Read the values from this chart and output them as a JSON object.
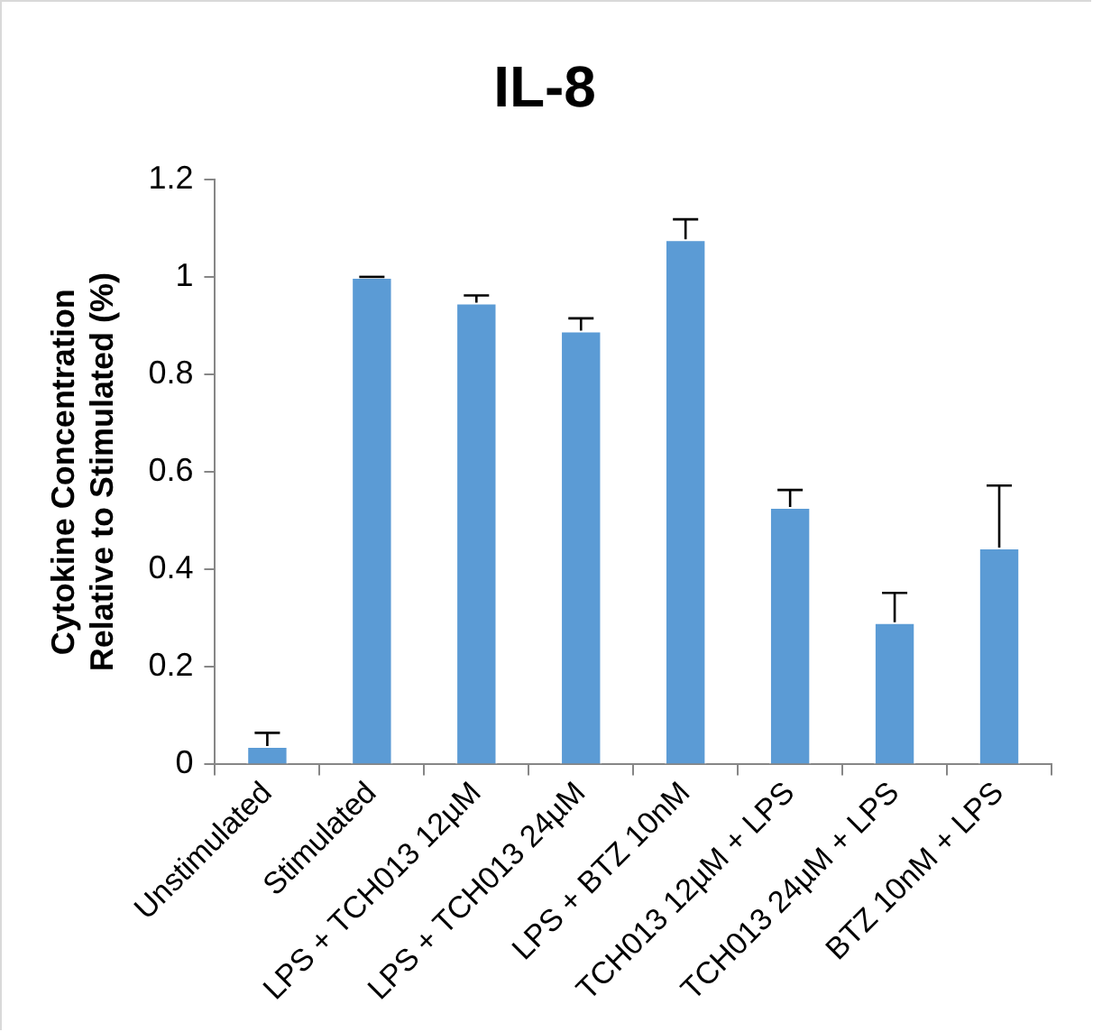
{
  "chart_data": {
    "type": "bar",
    "title": "IL-8",
    "ylabel": "Cytokine Concentration Relative to Stimulated (%)",
    "categories": [
      "Unstimulated",
      "Stimulated",
      "LPS + TCH013 12µM",
      "LPS + TCH013 24µM",
      "LPS + BTZ 10nM",
      "TCH013 12µM + LPS",
      "TCH013 24µM + LPS",
      "BTZ 10nM + LPS"
    ],
    "values": [
      0.038,
      1.0,
      0.947,
      0.89,
      1.077,
      0.528,
      0.292,
      0.445
    ],
    "errors": [
      [
        0.038,
        0.065
      ],
      [
        1.0,
        1.0
      ],
      [
        0.947,
        0.962
      ],
      [
        0.89,
        0.915
      ],
      [
        1.077,
        1.118
      ],
      [
        0.528,
        0.563
      ],
      [
        0.292,
        0.352
      ],
      [
        0.445,
        0.572
      ]
    ],
    "color": "#5b9bd5",
    "ylim": [
      0,
      1.2
    ],
    "yticks": [
      0,
      0.2,
      0.4,
      0.6,
      0.8,
      1,
      1.2
    ],
    "grid": false,
    "legend": false
  }
}
